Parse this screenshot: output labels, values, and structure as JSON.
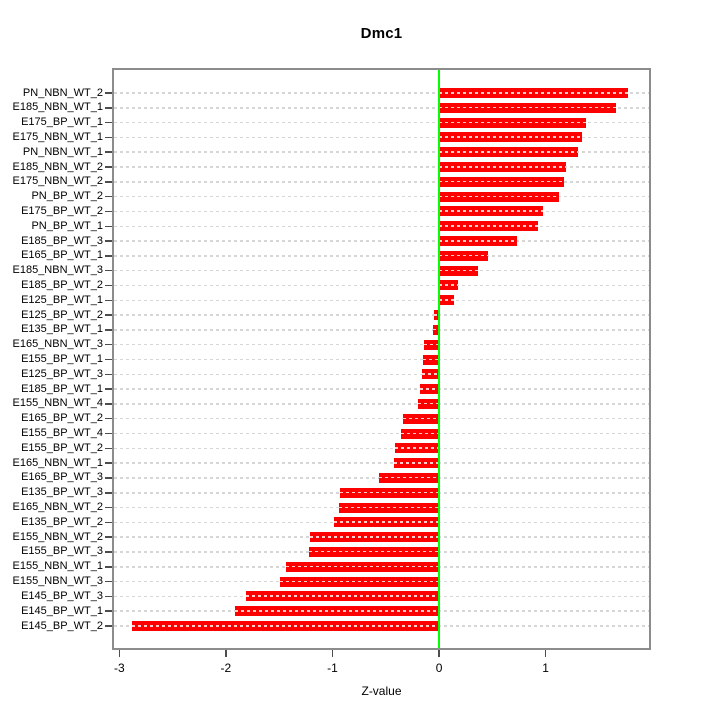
{
  "chart_data": {
    "type": "bar",
    "orientation": "horizontal",
    "title": "Dmc1",
    "xlabel": "Z-value",
    "ylabel": "",
    "categories": [
      "PN_NBN_WT_2",
      "E185_NBN_WT_1",
      "E175_BP_WT_1",
      "E175_NBN_WT_1",
      "PN_NBN_WT_1",
      "E185_NBN_WT_2",
      "E175_NBN_WT_2",
      "PN_BP_WT_2",
      "E175_BP_WT_2",
      "PN_BP_WT_1",
      "E185_BP_WT_3",
      "E165_BP_WT_1",
      "E185_NBN_WT_3",
      "E185_BP_WT_2",
      "E125_BP_WT_1",
      "E125_BP_WT_2",
      "E135_BP_WT_1",
      "E165_NBN_WT_3",
      "E155_BP_WT_1",
      "E125_BP_WT_3",
      "E185_BP_WT_1",
      "E155_NBN_WT_4",
      "E165_BP_WT_2",
      "E155_BP_WT_4",
      "E155_BP_WT_2",
      "E165_NBN_WT_1",
      "E165_BP_WT_3",
      "E135_BP_WT_3",
      "E165_NBN_WT_2",
      "E135_BP_WT_2",
      "E155_NBN_WT_2",
      "E155_BP_WT_3",
      "E155_NBN_WT_1",
      "E155_NBN_WT_3",
      "E145_BP_WT_3",
      "E145_BP_WT_1",
      "E145_BP_WT_2"
    ],
    "values": [
      1.77,
      1.66,
      1.38,
      1.34,
      1.3,
      1.19,
      1.17,
      1.13,
      0.98,
      0.93,
      0.73,
      0.46,
      0.37,
      0.18,
      0.14,
      -0.05,
      -0.06,
      -0.14,
      -0.15,
      -0.16,
      -0.18,
      -0.2,
      -0.34,
      -0.36,
      -0.41,
      -0.42,
      -0.56,
      -0.93,
      -0.94,
      -0.99,
      -1.21,
      -1.22,
      -1.44,
      -1.49,
      -1.81,
      -1.91,
      -2.88
    ],
    "xlim": [
      -3.05,
      1.97
    ],
    "xticks": [
      -3,
      -2,
      -1,
      0,
      1
    ],
    "zero_line": 0,
    "grid": true,
    "legend": "none",
    "colors": {
      "bar": "#ff0000",
      "zero_line": "#00ff00",
      "grid": "#d6d6d6",
      "box": "#8c8c8c",
      "tick": "#4d4d4d",
      "text": "#000000",
      "background": "#ffffff"
    }
  }
}
